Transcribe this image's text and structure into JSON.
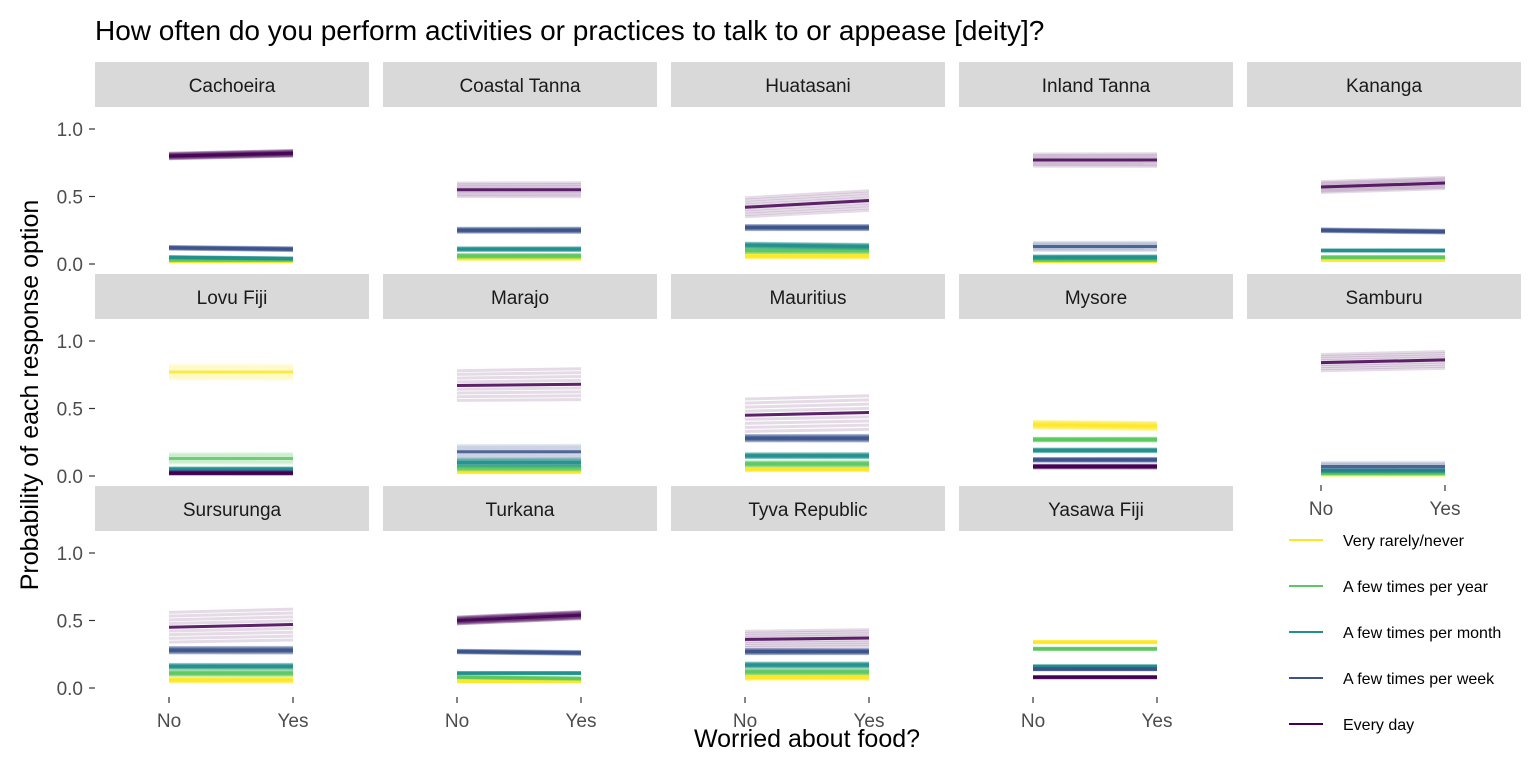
{
  "chart_data": {
    "type": "line",
    "title": "How often do you perform activities or practices to talk to or appease [deity]?",
    "xlabel": "Worried about food?",
    "ylabel": "Probability of each response option",
    "x": [
      "No",
      "Yes"
    ],
    "ylim": [
      0,
      1
    ],
    "yticks": [
      "0.0",
      "0.5",
      "1.0"
    ],
    "legend": {
      "position": "bottom-right",
      "items": [
        {
          "name": "Very rarely/never",
          "color": "#FDE725"
        },
        {
          "name": "A few times per year",
          "color": "#5DC863"
        },
        {
          "name": "A few times per month",
          "color": "#21908C"
        },
        {
          "name": "A few times per week",
          "color": "#3B528B"
        },
        {
          "name": "Every day",
          "color": "#440154"
        }
      ]
    },
    "panels": [
      {
        "name": "Cachoeira",
        "series": [
          {
            "name": "Very rarely/never",
            "values": [
              0.02,
              0.02
            ],
            "spread": 0.01
          },
          {
            "name": "A few times per year",
            "values": [
              0.03,
              0.03
            ],
            "spread": 0.01
          },
          {
            "name": "A few times per month",
            "values": [
              0.05,
              0.04
            ],
            "spread": 0.01
          },
          {
            "name": "A few times per week",
            "values": [
              0.12,
              0.11
            ],
            "spread": 0.02
          },
          {
            "name": "Every day",
            "values": [
              0.8,
              0.82
            ],
            "spread": 0.04
          }
        ]
      },
      {
        "name": "Coastal Tanna",
        "series": [
          {
            "name": "Very rarely/never",
            "values": [
              0.04,
              0.04
            ],
            "spread": 0.01
          },
          {
            "name": "A few times per year",
            "values": [
              0.06,
              0.06
            ],
            "spread": 0.02
          },
          {
            "name": "A few times per month",
            "values": [
              0.11,
              0.11
            ],
            "spread": 0.02
          },
          {
            "name": "A few times per week",
            "values": [
              0.25,
              0.25
            ],
            "spread": 0.03
          },
          {
            "name": "Every day",
            "values": [
              0.55,
              0.55
            ],
            "spread": 0.1
          }
        ]
      },
      {
        "name": "Huatasani",
        "series": [
          {
            "name": "Very rarely/never",
            "values": [
              0.06,
              0.06
            ],
            "spread": 0.03
          },
          {
            "name": "A few times per year",
            "values": [
              0.1,
              0.1
            ],
            "spread": 0.03
          },
          {
            "name": "A few times per month",
            "values": [
              0.14,
              0.13
            ],
            "spread": 0.03
          },
          {
            "name": "A few times per week",
            "values": [
              0.27,
              0.27
            ],
            "spread": 0.03
          },
          {
            "name": "Every day",
            "values": [
              0.42,
              0.47
            ],
            "spread": 0.14
          }
        ]
      },
      {
        "name": "Inland Tanna",
        "series": [
          {
            "name": "Very rarely/never",
            "values": [
              0.02,
              0.02
            ],
            "spread": 0.01
          },
          {
            "name": "A few times per year",
            "values": [
              0.03,
              0.03
            ],
            "spread": 0.01
          },
          {
            "name": "A few times per month",
            "values": [
              0.05,
              0.05
            ],
            "spread": 0.02
          },
          {
            "name": "A few times per week",
            "values": [
              0.13,
              0.13
            ],
            "spread": 0.06
          },
          {
            "name": "Every day",
            "values": [
              0.77,
              0.77
            ],
            "spread": 0.09
          }
        ]
      },
      {
        "name": "Kananga",
        "series": [
          {
            "name": "Very rarely/never",
            "values": [
              0.03,
              0.03
            ],
            "spread": 0.01
          },
          {
            "name": "A few times per year",
            "values": [
              0.05,
              0.05
            ],
            "spread": 0.01
          },
          {
            "name": "A few times per month",
            "values": [
              0.1,
              0.1
            ],
            "spread": 0.01
          },
          {
            "name": "A few times per week",
            "values": [
              0.25,
              0.24
            ],
            "spread": 0.02
          },
          {
            "name": "Every day",
            "values": [
              0.57,
              0.6
            ],
            "spread": 0.08
          }
        ]
      },
      {
        "name": "Lovu Fiji",
        "series": [
          {
            "name": "Very rarely/never",
            "values": [
              0.77,
              0.77
            ],
            "spread": 0.1
          },
          {
            "name": "A few times per year",
            "values": [
              0.13,
              0.13
            ],
            "spread": 0.07
          },
          {
            "name": "A few times per month",
            "values": [
              0.05,
              0.05
            ],
            "spread": 0.02
          },
          {
            "name": "A few times per week",
            "values": [
              0.03,
              0.03
            ],
            "spread": 0.01
          },
          {
            "name": "Every day",
            "values": [
              0.02,
              0.02
            ],
            "spread": 0.01
          }
        ]
      },
      {
        "name": "Marajo",
        "series": [
          {
            "name": "Very rarely/never",
            "values": [
              0.03,
              0.03
            ],
            "spread": 0.01
          },
          {
            "name": "A few times per year",
            "values": [
              0.06,
              0.06
            ],
            "spread": 0.03
          },
          {
            "name": "A few times per month",
            "values": [
              0.1,
              0.1
            ],
            "spread": 0.05
          },
          {
            "name": "A few times per week",
            "values": [
              0.18,
              0.18
            ],
            "spread": 0.09
          },
          {
            "name": "Every day",
            "values": [
              0.67,
              0.68
            ],
            "spread": 0.22
          }
        ]
      },
      {
        "name": "Mauritius",
        "series": [
          {
            "name": "Very rarely/never",
            "values": [
              0.05,
              0.05
            ],
            "spread": 0.02
          },
          {
            "name": "A few times per year",
            "values": [
              0.09,
              0.09
            ],
            "spread": 0.03
          },
          {
            "name": "A few times per month",
            "values": [
              0.15,
              0.15
            ],
            "spread": 0.03
          },
          {
            "name": "A few times per week",
            "values": [
              0.28,
              0.28
            ],
            "spread": 0.04
          },
          {
            "name": "Every day",
            "values": [
              0.45,
              0.47
            ],
            "spread": 0.24
          }
        ]
      },
      {
        "name": "Mysore",
        "series": [
          {
            "name": "Very rarely/never",
            "values": [
              0.38,
              0.37
            ],
            "spread": 0.05
          },
          {
            "name": "A few times per year",
            "values": [
              0.27,
              0.27
            ],
            "spread": 0.02
          },
          {
            "name": "A few times per month",
            "values": [
              0.19,
              0.19
            ],
            "spread": 0.02
          },
          {
            "name": "A few times per week",
            "values": [
              0.12,
              0.12
            ],
            "spread": 0.02
          },
          {
            "name": "Every day",
            "values": [
              0.07,
              0.07
            ],
            "spread": 0.02
          }
        ]
      },
      {
        "name": "Samburu",
        "series": [
          {
            "name": "Very rarely/never",
            "values": [
              0.01,
              0.01
            ],
            "spread": 0.005
          },
          {
            "name": "A few times per year",
            "values": [
              0.02,
              0.02
            ],
            "spread": 0.01
          },
          {
            "name": "A few times per month",
            "values": [
              0.04,
              0.04
            ],
            "spread": 0.02
          },
          {
            "name": "A few times per week",
            "values": [
              0.07,
              0.07
            ],
            "spread": 0.06
          },
          {
            "name": "Every day",
            "values": [
              0.84,
              0.86
            ],
            "spread": 0.12
          }
        ]
      },
      {
        "name": "Sursurunga",
        "series": [
          {
            "name": "Very rarely/never",
            "values": [
              0.06,
              0.06
            ],
            "spread": 0.03
          },
          {
            "name": "A few times per year",
            "values": [
              0.11,
              0.11
            ],
            "spread": 0.03
          },
          {
            "name": "A few times per month",
            "values": [
              0.16,
              0.16
            ],
            "spread": 0.03
          },
          {
            "name": "A few times per week",
            "values": [
              0.28,
              0.28
            ],
            "spread": 0.04
          },
          {
            "name": "Every day",
            "values": [
              0.45,
              0.47
            ],
            "spread": 0.22
          }
        ]
      },
      {
        "name": "Turkana",
        "series": [
          {
            "name": "Very rarely/never",
            "values": [
              0.05,
              0.05
            ],
            "spread": 0.01
          },
          {
            "name": "A few times per year",
            "values": [
              0.08,
              0.07
            ],
            "spread": 0.01
          },
          {
            "name": "A few times per month",
            "values": [
              0.11,
              0.11
            ],
            "spread": 0.01
          },
          {
            "name": "A few times per week",
            "values": [
              0.27,
              0.26
            ],
            "spread": 0.02
          },
          {
            "name": "Every day",
            "values": [
              0.5,
              0.54
            ],
            "spread": 0.05
          }
        ]
      },
      {
        "name": "Tyva Republic",
        "series": [
          {
            "name": "Very rarely/never",
            "values": [
              0.08,
              0.08
            ],
            "spread": 0.03
          },
          {
            "name": "A few times per year",
            "values": [
              0.12,
              0.12
            ],
            "spread": 0.03
          },
          {
            "name": "A few times per month",
            "values": [
              0.17,
              0.17
            ],
            "spread": 0.03
          },
          {
            "name": "A few times per week",
            "values": [
              0.27,
              0.27
            ],
            "spread": 0.03
          },
          {
            "name": "Every day",
            "values": [
              0.36,
              0.37
            ],
            "spread": 0.12
          }
        ]
      },
      {
        "name": "Yasawa Fiji",
        "series": [
          {
            "name": "Very rarely/never",
            "values": [
              0.34,
              0.34
            ],
            "spread": 0.01
          },
          {
            "name": "A few times per year",
            "values": [
              0.29,
              0.29
            ],
            "spread": 0.01
          },
          {
            "name": "A few times per month",
            "values": [
              0.16,
              0.16
            ],
            "spread": 0.01
          },
          {
            "name": "A few times per week",
            "values": [
              0.14,
              0.14
            ],
            "spread": 0.01
          },
          {
            "name": "Every day",
            "values": [
              0.08,
              0.08
            ],
            "spread": 0.01
          }
        ]
      }
    ]
  }
}
